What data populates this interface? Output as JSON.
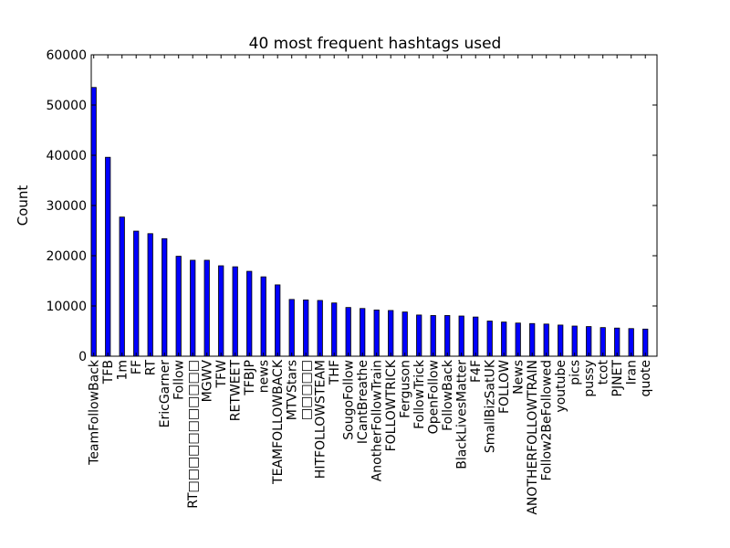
{
  "chart_data": {
    "type": "bar",
    "title": "40 most frequent hashtags used",
    "xlabel": "",
    "ylabel": "Count",
    "ylim": [
      0,
      60000
    ],
    "yticks": [
      0,
      10000,
      20000,
      30000,
      40000,
      50000,
      60000
    ],
    "grid": false,
    "bar_color": "#0000ff",
    "categories": [
      "TeamFollowBack",
      "TFB",
      "1m",
      "FF",
      "RT",
      "EricGarner",
      "Follow",
      "RT□□□□□□□□□□□",
      "MGWV",
      "TFW",
      "RETWEET",
      "TFBJP",
      "news",
      "TEAMFOLLOWBACK",
      "MTVStars",
      "□□□□□",
      "HITFOLLOWSTEAM",
      "THF",
      "SougoFollow",
      "ICantBreathe",
      "AnotherFollowTrain",
      "FOLLOWTRICK",
      "Ferguson",
      "FollowTrick",
      "OpenFollow",
      "FollowBack",
      "BlackLivesMatter",
      "F4F",
      "SmallBizSatUK",
      "FOLLOW",
      "News",
      "ANOTHERFOLLOWTRAIN",
      "Follow2BeFollowed",
      "youtube",
      "pics",
      "pussy",
      "tcot",
      "PJNET",
      "Iran",
      "quote"
    ],
    "values": [
      53500,
      39600,
      27700,
      24900,
      24400,
      23400,
      19900,
      19100,
      19100,
      18000,
      17800,
      16900,
      15800,
      14200,
      11300,
      11200,
      11100,
      10600,
      9700,
      9500,
      9200,
      9100,
      8800,
      8200,
      8100,
      8100,
      8000,
      7800,
      7000,
      6800,
      6600,
      6500,
      6400,
      6200,
      6000,
      5900,
      5700,
      5600,
      5500,
      5400
    ]
  }
}
